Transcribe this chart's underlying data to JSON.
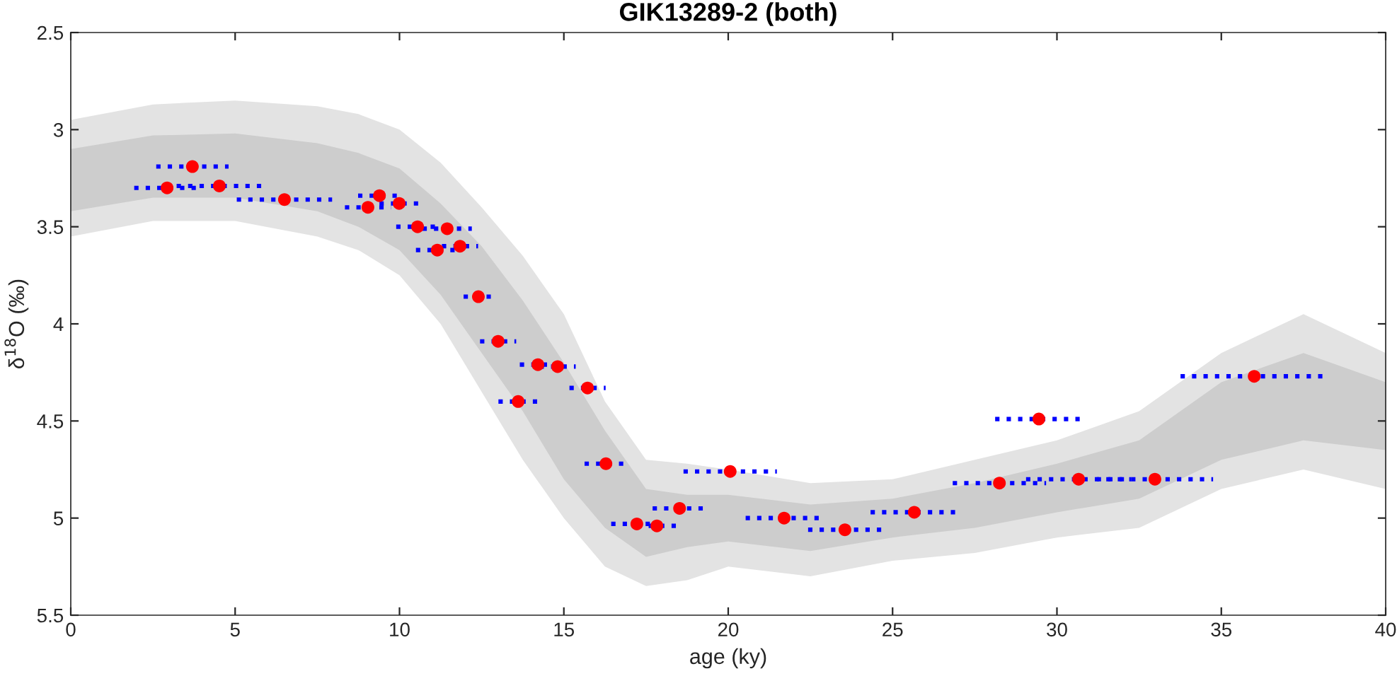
{
  "chart_data": {
    "type": "scatter",
    "title": "GIK13289-2 (both)",
    "xlabel": "age (ky)",
    "ylabel": "δ$^{18}$O (‰)",
    "xlim": [
      0,
      40
    ],
    "xticks": [
      0,
      5,
      10,
      15,
      20,
      25,
      30,
      35,
      40
    ],
    "ylim": [
      5.5,
      2.5
    ],
    "yticks": [
      2.5,
      3,
      3.5,
      4,
      4.5,
      5,
      5.5
    ],
    "grid": false,
    "legend": false,
    "series": [
      {
        "type": "area",
        "color": "#e3e3e3",
        "x": [
          0,
          2.5,
          5,
          7.5,
          8.75,
          10,
          11.25,
          12.5,
          13.75,
          15,
          16.25,
          17.5,
          18.75,
          20,
          22.5,
          25,
          27.5,
          30,
          32.5,
          35,
          37.5,
          40
        ],
        "values": [
          null,
          null,
          null,
          null,
          null,
          null,
          null,
          null,
          null,
          null,
          null,
          null,
          null,
          null,
          null,
          null,
          null,
          null,
          null,
          null,
          null,
          null
        ],
        "lower": [
          2.95,
          2.87,
          2.85,
          2.88,
          2.92,
          3.0,
          3.17,
          3.4,
          3.65,
          3.95,
          4.4,
          4.7,
          4.72,
          4.75,
          4.82,
          4.8,
          4.7,
          4.6,
          4.45,
          4.15,
          3.95,
          4.15
        ],
        "upper": [
          3.55,
          3.47,
          3.47,
          3.55,
          3.62,
          3.75,
          4.0,
          4.35,
          4.7,
          5.0,
          5.25,
          5.35,
          5.32,
          5.25,
          5.3,
          5.22,
          5.18,
          5.1,
          5.05,
          4.85,
          4.75,
          4.85
        ]
      },
      {
        "type": "area",
        "color": "#cdcdcd",
        "x": [
          0,
          2.5,
          5,
          7.5,
          8.75,
          10,
          11.25,
          12.5,
          13.75,
          15,
          16.25,
          17.5,
          18.75,
          20,
          22.5,
          25,
          27.5,
          30,
          32.5,
          35,
          37.5,
          40
        ],
        "values": [
          null,
          null,
          null,
          null,
          null,
          null,
          null,
          null,
          null,
          null,
          null,
          null,
          null,
          null,
          null,
          null,
          null,
          null,
          null,
          null,
          null,
          null
        ],
        "lower": [
          3.1,
          3.03,
          3.02,
          3.07,
          3.12,
          3.2,
          3.38,
          3.6,
          3.88,
          4.2,
          4.55,
          4.85,
          4.88,
          4.88,
          4.93,
          4.9,
          4.82,
          4.72,
          4.6,
          4.3,
          4.15,
          4.3
        ],
        "upper": [
          3.42,
          3.35,
          3.35,
          3.42,
          3.5,
          3.62,
          3.85,
          4.15,
          4.45,
          4.8,
          5.05,
          5.2,
          5.15,
          5.12,
          5.17,
          5.1,
          5.05,
          4.97,
          4.9,
          4.7,
          4.6,
          4.65
        ]
      },
      {
        "color": "#ff0000",
        "marker": "circle",
        "x": [
          2.93,
          3.7,
          4.52,
          6.5,
          9.04,
          9.39,
          9.99,
          10.55,
          11.45,
          11.15,
          11.84,
          12.4,
          13.0,
          14.21,
          14.81,
          15.72,
          13.61,
          16.28,
          17.22,
          17.83,
          18.52,
          20.06,
          21.7,
          23.55,
          25.66,
          28.25,
          29.45,
          30.66,
          32.98,
          36.0
        ],
        "values": [
          3.3,
          3.19,
          3.29,
          3.36,
          3.4,
          3.34,
          3.38,
          3.5,
          3.51,
          3.62,
          3.6,
          3.86,
          4.09,
          4.21,
          4.22,
          4.33,
          4.4,
          4.72,
          5.03,
          5.04,
          4.95,
          4.76,
          5.0,
          5.06,
          4.97,
          4.82,
          4.49,
          4.8,
          4.8,
          4.27
        ],
        "xerrors": [
          1.0,
          1.1,
          1.3,
          1.45,
          0.7,
          0.65,
          0.6,
          0.65,
          0.75,
          0.65,
          0.55,
          0.45,
          0.55,
          0.55,
          0.55,
          0.55,
          0.6,
          0.65,
          0.78,
          0.6,
          0.82,
          1.42,
          1.17,
          1.12,
          1.33,
          1.42,
          1.33,
          1.6,
          1.77,
          2.24
        ]
      }
    ]
  }
}
